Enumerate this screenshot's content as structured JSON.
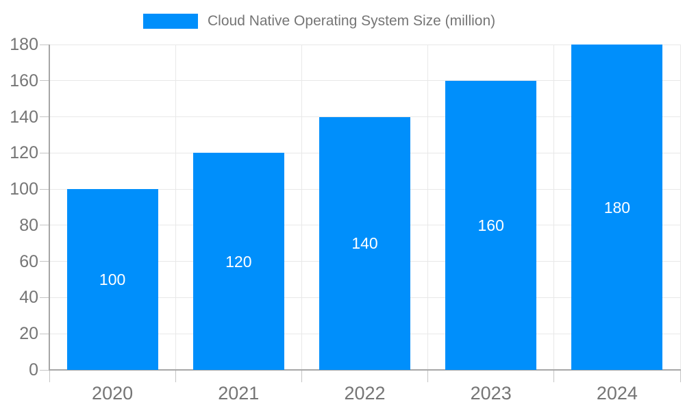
{
  "chart_data": {
    "type": "bar",
    "title": "Cloud Native Operating System Size (million)",
    "categories": [
      "2020",
      "2021",
      "2022",
      "2023",
      "2024"
    ],
    "values": [
      100,
      120,
      140,
      160,
      180
    ],
    "data_labels": [
      "100",
      "120",
      "140",
      "160",
      "180"
    ],
    "xlabel": "",
    "ylabel": "",
    "ylim": [
      0,
      180
    ],
    "ytick_step": 20,
    "ytick_labels": [
      "0",
      "20",
      "40",
      "60",
      "80",
      "100",
      "120",
      "140",
      "160",
      "180"
    ],
    "grid": true,
    "legend_position": "top",
    "colors": {
      "bar": "#008ffb",
      "data_label": "#ffffff",
      "axis_text": "#757575",
      "grid_line": "#e8e8e8",
      "axis_line": "#a6a6a6",
      "tick": "#c4c4c4",
      "background": "#ffffff"
    }
  }
}
